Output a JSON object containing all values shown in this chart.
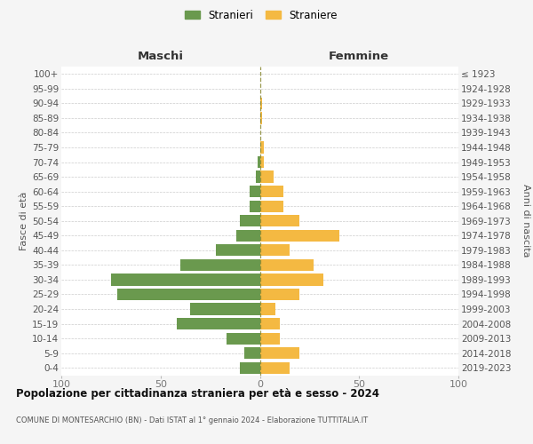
{
  "age_groups_bottom_to_top": [
    "0-4",
    "5-9",
    "10-14",
    "15-19",
    "20-24",
    "25-29",
    "30-34",
    "35-39",
    "40-44",
    "45-49",
    "50-54",
    "55-59",
    "60-64",
    "65-69",
    "70-74",
    "75-79",
    "80-84",
    "85-89",
    "90-94",
    "95-99",
    "100+"
  ],
  "birth_years_bottom_to_top": [
    "2019-2023",
    "2014-2018",
    "2009-2013",
    "2004-2008",
    "1999-2003",
    "1994-1998",
    "1989-1993",
    "1984-1988",
    "1979-1983",
    "1974-1978",
    "1969-1973",
    "1964-1968",
    "1959-1963",
    "1954-1958",
    "1949-1953",
    "1944-1948",
    "1939-1943",
    "1934-1938",
    "1929-1933",
    "1924-1928",
    "≤ 1923"
  ],
  "maschi_bottom_to_top": [
    10,
    8,
    17,
    42,
    35,
    72,
    75,
    40,
    22,
    12,
    10,
    5,
    5,
    2,
    1,
    0,
    0,
    0,
    0,
    0,
    0
  ],
  "femmine_bottom_to_top": [
    15,
    20,
    10,
    10,
    8,
    20,
    32,
    27,
    15,
    40,
    20,
    12,
    12,
    7,
    2,
    2,
    0,
    1,
    1,
    0,
    0
  ],
  "color_maschi": "#6a994e",
  "color_femmine": "#f4b942",
  "title_main": "Popolazione per cittadinanza straniera per età e sesso - 2024",
  "title_sub": "COMUNE DI MONTESARCHIO (BN) - Dati ISTAT al 1° gennaio 2024 - Elaborazione TUTTITALIA.IT",
  "legend_maschi": "Stranieri",
  "legend_femmine": "Straniere",
  "header_left": "Maschi",
  "header_right": "Femmine",
  "ylabel_left": "Fasce di età",
  "ylabel_right": "Anni di nascita",
  "xlim": 100,
  "bg_color": "#f5f5f5",
  "plot_bg": "#ffffff",
  "grid_color": "#cccccc",
  "tick_color": "#777777",
  "label_color": "#555555",
  "header_color": "#333333",
  "title_color": "#111111",
  "sub_color": "#555555"
}
